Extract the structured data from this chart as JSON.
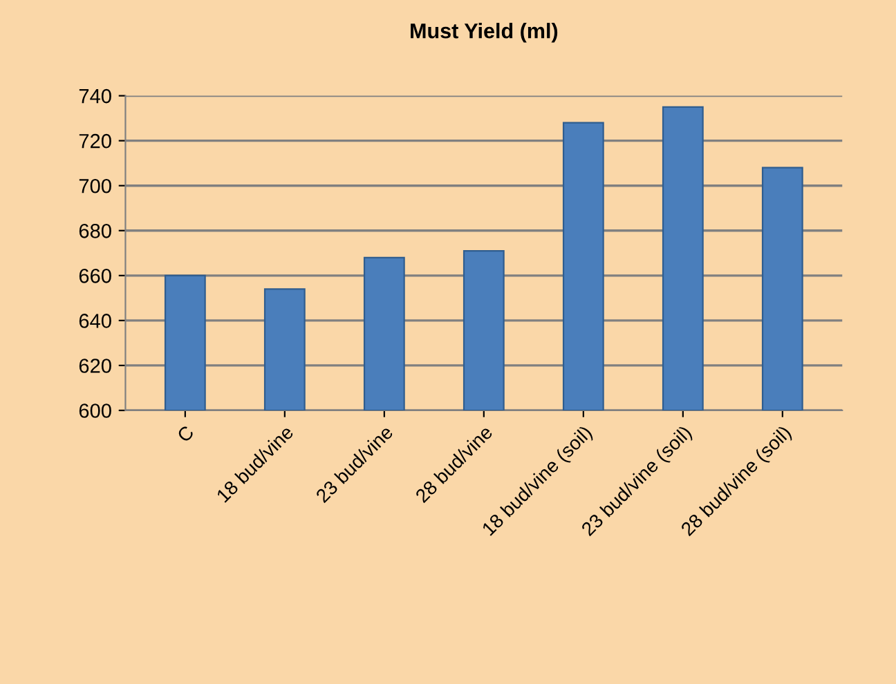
{
  "chart_data": {
    "type": "bar",
    "title": "Must Yield (ml)",
    "categories": [
      "C",
      "18 bud/vine",
      "23 bud/vine",
      "28 bud/vine",
      "18 bud/vine (soil)",
      "23 bud/vine (soil)",
      "28 bud/vine (soil)"
    ],
    "values": [
      660,
      654,
      668,
      671,
      728,
      735,
      708
    ],
    "color": "#4a7ebb",
    "ylim": [
      600,
      740
    ],
    "yticks": [
      600,
      620,
      640,
      660,
      680,
      700,
      720,
      740
    ],
    "grid": "y",
    "legend": false
  }
}
